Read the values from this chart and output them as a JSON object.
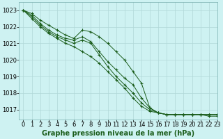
{
  "background_color": "#cef2f2",
  "grid_color": "#b0d8d8",
  "line_color": "#1a5c1a",
  "xlabel": "Graphe pression niveau de la mer (hPa)",
  "xlabel_fontsize": 7,
  "tick_fontsize": 6,
  "xlim": [
    -0.5,
    23
  ],
  "ylim": [
    1016.4,
    1023.5
  ],
  "yticks": [
    1017,
    1018,
    1019,
    1020,
    1021,
    1022,
    1023
  ],
  "xticks": [
    0,
    1,
    2,
    3,
    4,
    5,
    6,
    7,
    8,
    9,
    10,
    11,
    12,
    13,
    14,
    15,
    16,
    17,
    18,
    19,
    20,
    21,
    22,
    23
  ],
  "series": [
    [
      1023.0,
      1022.8,
      1022.4,
      1022.1,
      1021.8,
      1021.5,
      1021.3,
      1021.8,
      1021.7,
      1021.4,
      1021.0,
      1020.5,
      1020.0,
      1019.3,
      1018.6,
      1017.1,
      1016.8,
      1016.7,
      1016.7,
      1016.7,
      1016.7,
      1016.7,
      1016.6,
      1016.6
    ],
    [
      1023.0,
      1022.7,
      1022.2,
      1021.8,
      1021.5,
      1021.3,
      1021.2,
      1021.4,
      1021.1,
      1020.5,
      1019.9,
      1019.4,
      1018.9,
      1018.5,
      1017.7,
      1017.1,
      1016.8,
      1016.7,
      1016.7,
      1016.7,
      1016.7,
      1016.7,
      1016.7,
      1016.7
    ],
    [
      1023.0,
      1022.6,
      1022.1,
      1021.7,
      1021.4,
      1021.2,
      1021.0,
      1021.2,
      1021.0,
      1020.3,
      1019.6,
      1019.0,
      1018.5,
      1018.0,
      1017.4,
      1017.0,
      1016.8,
      1016.7,
      1016.7,
      1016.7,
      1016.7,
      1016.7,
      1016.7,
      1016.7
    ],
    [
      1023.0,
      1022.5,
      1022.0,
      1021.6,
      1021.3,
      1021.0,
      1020.8,
      1020.5,
      1020.2,
      1019.8,
      1019.3,
      1018.8,
      1018.3,
      1017.7,
      1017.2,
      1016.9,
      1016.8,
      1016.7,
      1016.7,
      1016.7,
      1016.7,
      1016.7,
      1016.7,
      1016.7
    ]
  ]
}
